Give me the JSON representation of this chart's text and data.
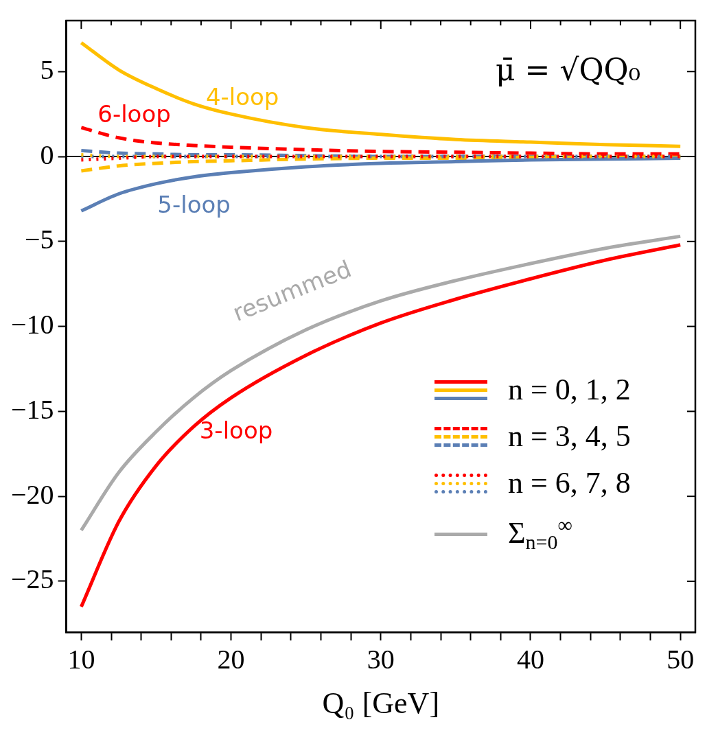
{
  "chart_data": {
    "type": "line",
    "xlabel": "Q₀ [GeV]",
    "x": [
      10,
      12.5,
      15,
      17.5,
      20,
      25,
      30,
      35,
      40,
      45,
      50
    ],
    "series": [
      {
        "name": "3-loop",
        "color": "#ff0000",
        "line_style": "solid",
        "values": [
          -26.5,
          -21.5,
          -18.2,
          -15.9,
          -14.2,
          -11.7,
          -9.8,
          -8.4,
          -7.2,
          -6.1,
          -5.2
        ]
      },
      {
        "name": "4-loop",
        "color": "#ffbf00",
        "line_style": "solid",
        "values": [
          6.7,
          5.1,
          4.0,
          3.1,
          2.5,
          1.7,
          1.3,
          1.0,
          0.85,
          0.7,
          0.6
        ]
      },
      {
        "name": "5-loop",
        "color": "#5b7fb5",
        "line_style": "solid",
        "values": [
          -3.2,
          -2.2,
          -1.6,
          -1.2,
          -0.95,
          -0.6,
          -0.4,
          -0.3,
          -0.2,
          -0.15,
          -0.1
        ]
      },
      {
        "name": "6-loop",
        "color": "#ff0000",
        "line_style": "dashed",
        "values": [
          1.7,
          1.1,
          0.8,
          0.65,
          0.55,
          0.4,
          0.3,
          0.25,
          0.2,
          0.15,
          0.15
        ]
      },
      {
        "color": "#ffbf00",
        "line_style": "dashed",
        "values": [
          -0.85,
          -0.55,
          -0.4,
          -0.3,
          -0.25,
          -0.15,
          -0.1,
          -0.1,
          -0.05,
          -0.05,
          0
        ]
      },
      {
        "color": "#5b7fb5",
        "line_style": "dashed",
        "values": [
          0.35,
          0.2,
          0.15,
          0.1,
          0.1,
          0.05,
          0,
          0,
          0,
          0,
          0
        ]
      },
      {
        "color": "#ff0000",
        "line_style": "dotted",
        "values": [
          -0.2,
          -0.1,
          0,
          0,
          0,
          0,
          0,
          0,
          0,
          0,
          0
        ]
      },
      {
        "color": "#ffbf00",
        "line_style": "dotted",
        "values": [
          0.1,
          0,
          0,
          0,
          0,
          0,
          0,
          0,
          0,
          0,
          0
        ]
      },
      {
        "color": "#5b7fb5",
        "line_style": "dotted",
        "values": [
          0,
          0,
          0,
          0,
          0,
          0,
          0,
          0,
          0,
          0,
          0
        ]
      },
      {
        "name": "resummed",
        "color": "#aaaaaa",
        "line_style": "solid",
        "values": [
          -22.0,
          -18.6,
          -16.2,
          -14.2,
          -12.6,
          -10.2,
          -8.5,
          -7.3,
          -6.3,
          -5.4,
          -4.7
        ]
      }
    ],
    "xlim": [
      9,
      51
    ],
    "xticks": [
      10,
      {
        "value": 12,
        "label": null
      },
      {
        "value": 14,
        "label": null
      },
      {
        "value": 16,
        "label": null
      },
      {
        "value": 18,
        "label": null
      },
      20,
      {
        "value": 22,
        "label": null
      },
      {
        "value": 24,
        "label": null
      },
      {
        "value": 26,
        "label": null
      },
      {
        "value": 28,
        "label": null
      },
      30,
      {
        "value": 32,
        "label": null
      },
      {
        "value": 34,
        "label": null
      },
      {
        "value": 36,
        "label": null
      },
      {
        "value": 38,
        "label": null
      },
      40,
      {
        "value": 42,
        "label": null
      },
      {
        "value": 44,
        "label": null
      },
      {
        "value": 46,
        "label": null
      },
      {
        "value": 48,
        "label": null
      },
      50
    ],
    "ylim": [
      -28,
      8
    ],
    "yticks": [
      {
        "value": -25,
        "label": "−25"
      },
      {
        "value": -20,
        "label": "−20"
      },
      {
        "value": -15,
        "label": "−15"
      },
      {
        "value": -10,
        "label": "−10"
      },
      {
        "value": -5,
        "label": "−5"
      },
      0,
      5
    ],
    "ref_lines": [
      {
        "axis": "y",
        "value": 0,
        "color": "#000000"
      }
    ],
    "annotations": [
      "μ̄ = √QQ₀",
      "n = 0, 1, 2",
      "n = 3, 4, 5",
      "n = 6, 7, 8",
      "Σ$_{n=0}$$^{∞}$"
    ],
    "grid": false,
    "marker": "none"
  }
}
